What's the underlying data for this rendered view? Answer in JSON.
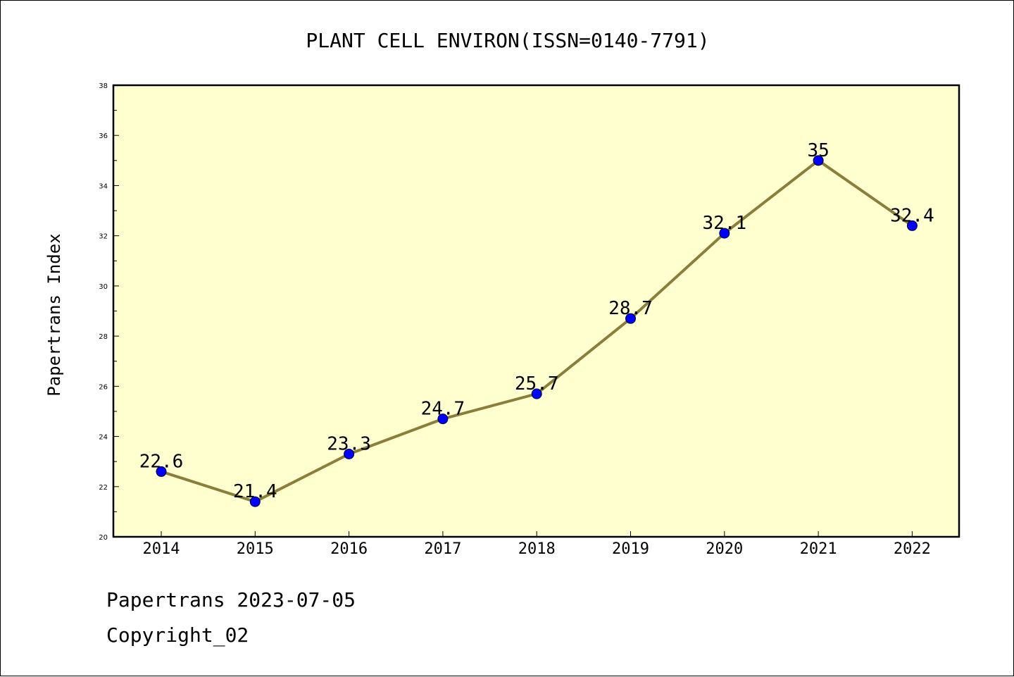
{
  "chart_data": {
    "type": "line",
    "title": "PLANT CELL ENVIRON(ISSN=0140-7791)",
    "xlabel": "",
    "ylabel": "Papertrans Index",
    "categories": [
      "2014",
      "2015",
      "2016",
      "2017",
      "2018",
      "2019",
      "2020",
      "2021",
      "2022"
    ],
    "series": [
      {
        "values": [
          22.6,
          21.4,
          23.3,
          24.7,
          25.7,
          28.7,
          32.1,
          35,
          32.4
        ],
        "data_labels": [
          "22.6",
          "21.4",
          "23.3",
          "24.7",
          "25.7",
          "28.7",
          "32.1",
          "35",
          "32.4"
        ]
      }
    ],
    "ylim": [
      20,
      38
    ],
    "yticks": [
      20,
      22,
      24,
      26,
      28,
      30,
      32,
      34,
      36,
      38
    ],
    "grid": false,
    "legend": "none",
    "colors": {
      "plot_background": "#ffffd0",
      "line": "#8b7d3a",
      "marker": "#0000ff"
    }
  },
  "footer": {
    "line1": "Papertrans 2023-07-05",
    "line2": "Copyright_02"
  }
}
